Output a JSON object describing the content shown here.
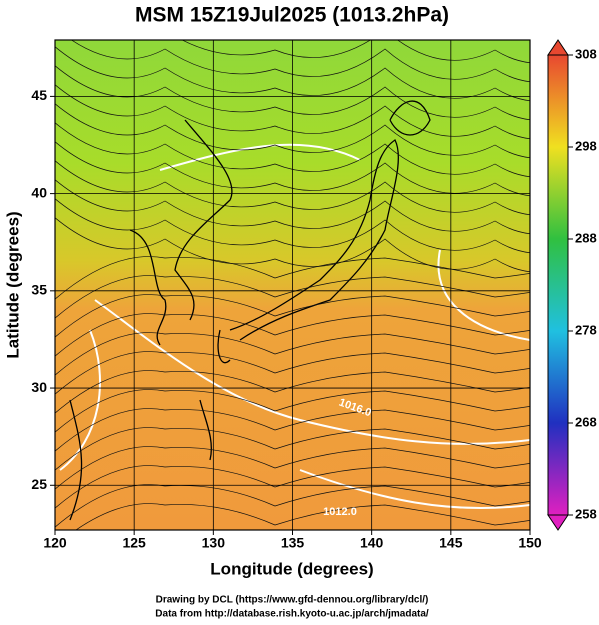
{
  "chart_data": {
    "type": "map",
    "title": "MSM 15Z19Jul2025 (1013.2hPa)",
    "xlabel": "Longitude (degrees)",
    "ylabel": "Latitude  (degrees)",
    "xlim": [
      120,
      150
    ],
    "ylim": [
      22.7,
      47.9
    ],
    "xticks": [
      120,
      125,
      130,
      135,
      140,
      145,
      150
    ],
    "yticks": [
      25,
      30,
      35,
      40,
      45
    ],
    "grid": true,
    "colorbar": {
      "lim": [
        258,
        308
      ],
      "ticks": [
        258,
        268,
        278,
        288,
        298,
        308
      ]
    },
    "contour_labels": [
      "1016.0",
      "1012.0"
    ],
    "footer": [
      "Drawing by DCL (https://www.gfd-dennou.org/library/dcl/)",
      "Data from http://database.rish.kyoto-u.ac.jp/arch/jmadata/"
    ]
  }
}
